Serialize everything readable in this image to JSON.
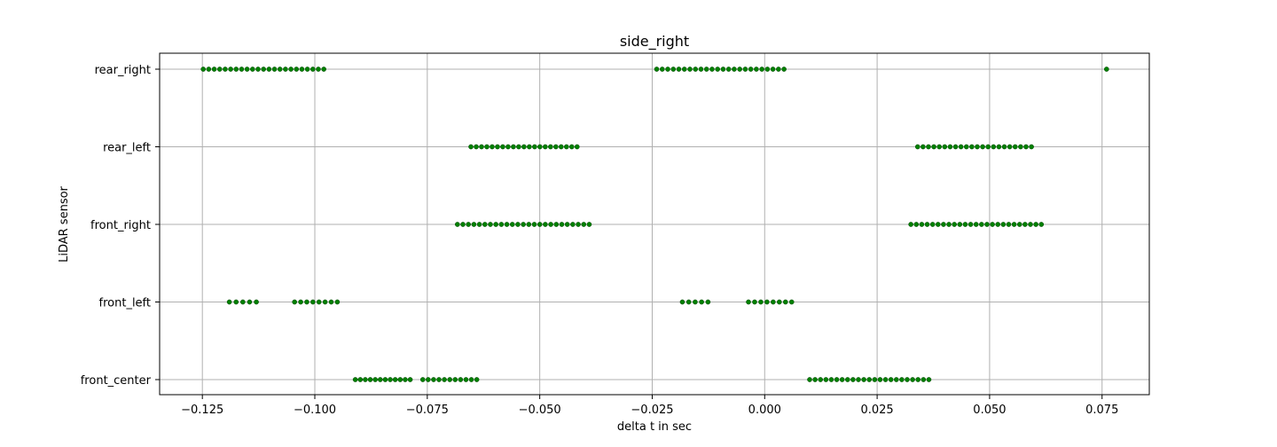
{
  "chart_data": {
    "type": "scatter",
    "title": "side_right",
    "xlabel": "delta t in sec",
    "ylabel": "LiDAR sensor",
    "xlim": [
      -0.1345,
      0.0855
    ],
    "grid": true,
    "marker_color": "#008000",
    "grid_color": "#b0b0b0",
    "x_ticks": [
      -0.125,
      -0.1,
      -0.075,
      -0.05,
      -0.025,
      0.0,
      0.025,
      0.05,
      0.075
    ],
    "x_tick_labels": [
      "−0.125",
      "−0.100",
      "−0.075",
      "−0.050",
      "−0.025",
      "0.000",
      "0.025",
      "0.050",
      "0.075"
    ],
    "categories": [
      "front_center",
      "front_left",
      "front_right",
      "rear_left",
      "rear_right"
    ],
    "series": [
      {
        "name": "front_center",
        "clusters": [
          {
            "start": -0.091,
            "end": -0.0788,
            "count": 12
          },
          {
            "start": -0.076,
            "end": -0.064,
            "count": 11
          },
          {
            "start": 0.01,
            "end": 0.0365,
            "count": 23
          }
        ]
      },
      {
        "name": "front_left",
        "clusters": [
          {
            "start": -0.119,
            "end": -0.113,
            "count": 5
          },
          {
            "start": -0.1045,
            "end": -0.095,
            "count": 8
          },
          {
            "start": -0.0183,
            "end": -0.0126,
            "count": 5
          },
          {
            "start": -0.0036,
            "end": 0.006,
            "count": 8
          }
        ]
      },
      {
        "name": "front_right",
        "clusters": [
          {
            "start": -0.0683,
            "end": -0.039,
            "count": 25
          },
          {
            "start": 0.0325,
            "end": 0.0615,
            "count": 25
          }
        ]
      },
      {
        "name": "rear_left",
        "clusters": [
          {
            "start": -0.0653,
            "end": -0.0417,
            "count": 21
          },
          {
            "start": 0.034,
            "end": 0.0593,
            "count": 22
          }
        ]
      },
      {
        "name": "rear_right",
        "clusters": [
          {
            "start": -0.1248,
            "end": -0.098,
            "count": 23
          },
          {
            "start": -0.024,
            "end": 0.0043,
            "count": 24
          },
          {
            "start": 0.076,
            "end": 0.076,
            "count": 1
          }
        ]
      }
    ]
  }
}
